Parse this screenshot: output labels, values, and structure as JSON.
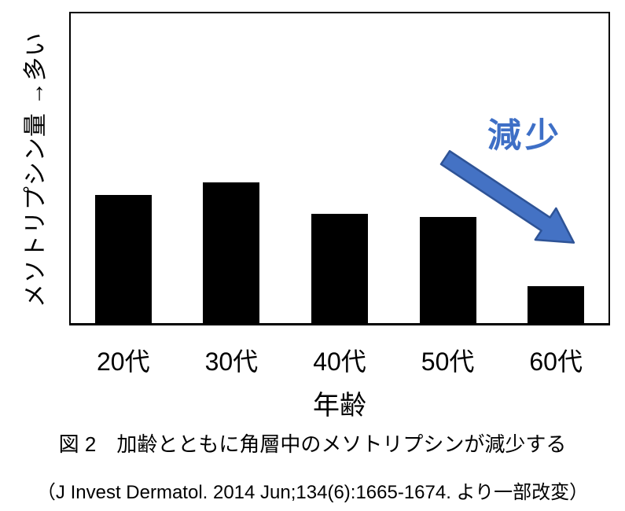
{
  "figure": {
    "annotation": "減少",
    "caption": "図 2　加齢とともに角層中のメソトリプシンが減少する",
    "source": "（J Invest Dermatol. 2014 Jun;134(6):1665-1674. より一部改変）"
  },
  "colors": {
    "bar": "#000000",
    "plot_border": "#000000",
    "arrow_fill": "#4472C4",
    "arrow_outline": "#2E5396",
    "annotation_text": "#3E6FC6",
    "text": "#000000"
  },
  "chart_data": {
    "type": "bar",
    "categories": [
      "20代",
      "30代",
      "40代",
      "50代",
      "60代"
    ],
    "values": [
      41,
      45,
      35,
      34,
      12
    ],
    "values_note": "relative units read from bar heights; y-axis has no numeric ticks",
    "title": "",
    "xlabel": "年齢",
    "ylabel": "メソトリプシン量 →多い",
    "ylim": [
      0,
      100
    ],
    "grid": false,
    "legend": false,
    "annotations": [
      {
        "text": "減少",
        "shape": "block-arrow-down-right",
        "color": "#4472C4"
      }
    ]
  }
}
